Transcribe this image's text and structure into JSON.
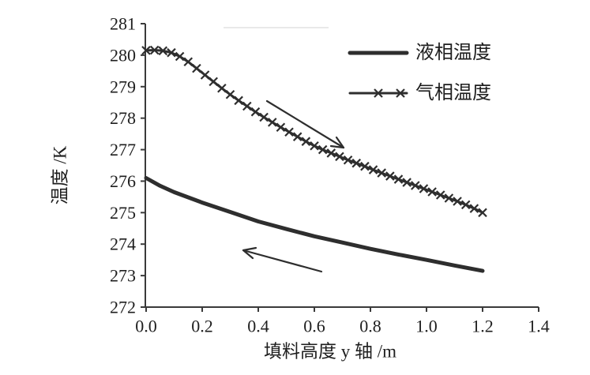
{
  "chart_data": {
    "type": "line",
    "xlabel": "填料高度 y 轴 /m",
    "ylabel": "温度 /K",
    "xlim": [
      0.0,
      1.4
    ],
    "ylim": [
      272,
      281
    ],
    "x_ticks": [
      "0.0",
      "0.2",
      "0.4",
      "0.6",
      "0.8",
      "1.0",
      "1.2",
      "1.4"
    ],
    "y_ticks": [
      "272",
      "273",
      "274",
      "275",
      "276",
      "277",
      "278",
      "279",
      "280",
      "281"
    ],
    "grid": false,
    "legend": "top-right",
    "series": [
      {
        "name": "液相温度",
        "marker": "none",
        "x": [
          0.0,
          0.05,
          0.1,
          0.2,
          0.3,
          0.4,
          0.5,
          0.6,
          0.7,
          0.8,
          0.9,
          1.0,
          1.1,
          1.2
        ],
        "y": [
          276.1,
          275.85,
          275.65,
          275.32,
          275.02,
          274.72,
          274.48,
          274.25,
          274.05,
          273.85,
          273.67,
          273.5,
          273.32,
          273.15
        ]
      },
      {
        "name": "气相温度",
        "marker": "x",
        "x": [
          0.0,
          0.03,
          0.06,
          0.09,
          0.12,
          0.15,
          0.18,
          0.21,
          0.24,
          0.27,
          0.3,
          0.33,
          0.36,
          0.39,
          0.42,
          0.45,
          0.48,
          0.51,
          0.54,
          0.57,
          0.6,
          0.63,
          0.66,
          0.69,
          0.72,
          0.75,
          0.78,
          0.81,
          0.84,
          0.87,
          0.9,
          0.93,
          0.96,
          0.99,
          1.02,
          1.05,
          1.08,
          1.11,
          1.14,
          1.17,
          1.2
        ],
        "y": [
          280.15,
          280.16,
          280.14,
          280.08,
          279.96,
          279.79,
          279.58,
          279.37,
          279.16,
          278.95,
          278.75,
          278.56,
          278.38,
          278.2,
          278.03,
          277.87,
          277.71,
          277.56,
          277.41,
          277.26,
          277.12,
          277.0,
          276.89,
          276.78,
          276.67,
          276.57,
          276.47,
          276.36,
          276.26,
          276.16,
          276.06,
          275.96,
          275.86,
          275.76,
          275.66,
          275.56,
          275.46,
          275.36,
          275.25,
          275.13,
          275.0
        ]
      }
    ]
  },
  "colors": {
    "line": "#2e2e2e",
    "axis": "#3a3a3a",
    "text": "#1e1e1e",
    "background": "#ffffff",
    "faint": "#e2e2e2"
  }
}
